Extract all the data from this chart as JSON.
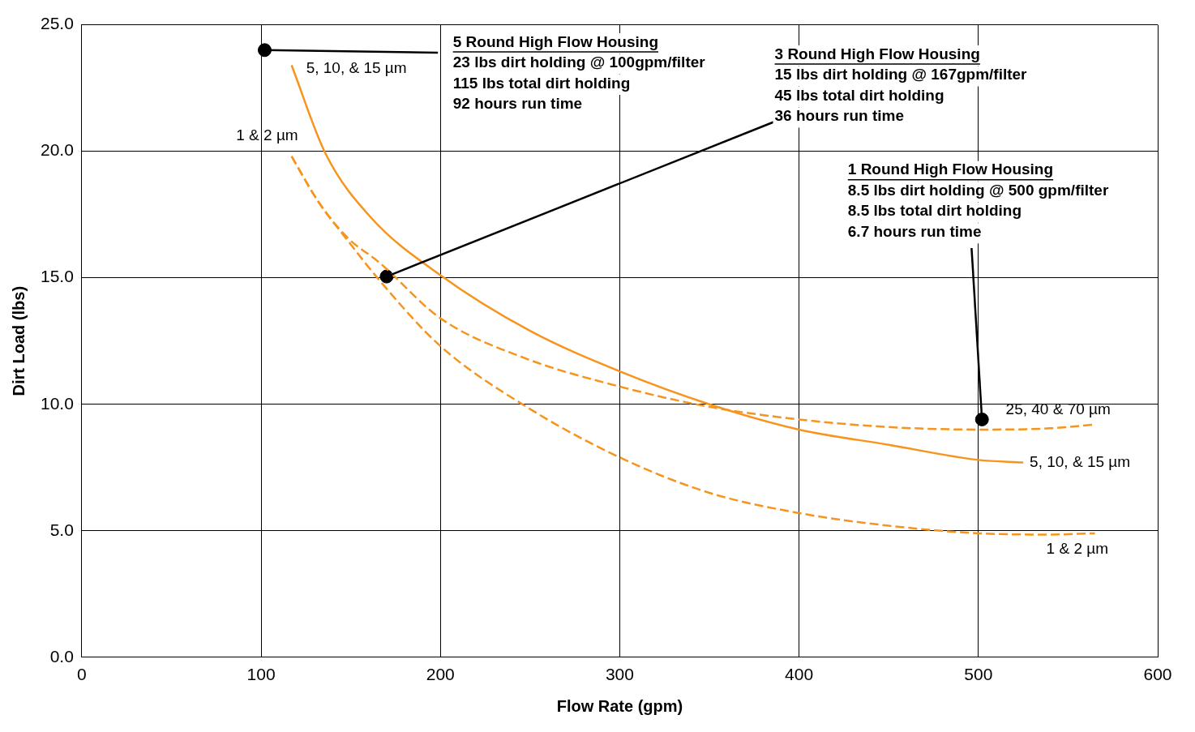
{
  "chart_data": {
    "type": "line",
    "xlabel": "Flow Rate (gpm)",
    "ylabel": "Dirt Load (lbs)",
    "xlim": [
      0,
      600
    ],
    "xticks": [
      0,
      100,
      200,
      300,
      400,
      500,
      600
    ],
    "ylim": [
      0,
      25
    ],
    "yticks": [
      {
        "value": 0,
        "label": "0.0"
      },
      {
        "value": 5,
        "label": "5.0"
      },
      {
        "value": 10,
        "label": "10.0"
      },
      {
        "value": 15,
        "label": "15.0"
      },
      {
        "value": 20,
        "label": "20.0"
      },
      {
        "value": 25,
        "label": "25.0"
      }
    ],
    "grid": true,
    "legend": false,
    "marker": "none",
    "series": [
      {
        "name": "5, 10, & 15 µm",
        "color": "#f7941d",
        "line_style": "solid",
        "x": [
          117,
          136,
          161,
          200,
          250,
          300,
          350,
          400,
          450,
          500,
          525
        ],
        "values": [
          23.4,
          19.9,
          17.4,
          15.1,
          12.9,
          11.3,
          10.0,
          9.0,
          8.4,
          7.8,
          7.7
        ]
      },
      {
        "name": "1 & 2 µm",
        "color": "#f7941d",
        "line_style": "dashed",
        "x": [
          117,
          132,
          148,
          166,
          200,
          248,
          300,
          350,
          400,
          450,
          500,
          540,
          565
        ],
        "values": [
          19.8,
          18.0,
          16.5,
          14.9,
          12.3,
          9.9,
          7.9,
          6.5,
          5.7,
          5.2,
          4.9,
          4.85,
          4.9
        ]
      },
      {
        "name": "25, 40 & 70 µm",
        "color": "#f7941d",
        "line_style": "dashed",
        "x": [
          117,
          132,
          148,
          166,
          200,
          248,
          300,
          350,
          400,
          450,
          500,
          540,
          565
        ],
        "values": [
          19.8,
          18.0,
          16.6,
          15.6,
          13.4,
          11.8,
          10.7,
          9.9,
          9.4,
          9.1,
          9.0,
          9.05,
          9.2
        ]
      },
      {
        "type": "scatter",
        "color": "#000000",
        "marker": "circle",
        "x": [
          102,
          170,
          502
        ],
        "values": [
          24.0,
          15.05,
          9.4
        ]
      }
    ],
    "annotations": [
      {
        "text": "5 Round High Flow Housing\n23 lbs dirt holding @ 100gpm/filter\n115 lbs total dirt holding\n92 hours run time",
        "x": 102,
        "y": 24.0
      },
      {
        "text": "3 Round High Flow Housing\n15 lbs dirt holding @ 167gpm/filter\n45 lbs total dirt holding\n36 hours run time",
        "x": 170,
        "y": 15.05
      },
      {
        "text": "1 Round High Flow Housing\n8.5 lbs dirt holding @ 500 gpm/filter\n8.5 lbs total dirt holding\n6.7 hours run time",
        "x": 502,
        "y": 9.4
      },
      {
        "text": "5, 10, & 15 µm",
        "x": 117,
        "y": 23.4
      },
      {
        "text": "1 & 2 µm",
        "x": 117,
        "y": 19.8
      }
    ]
  }
}
